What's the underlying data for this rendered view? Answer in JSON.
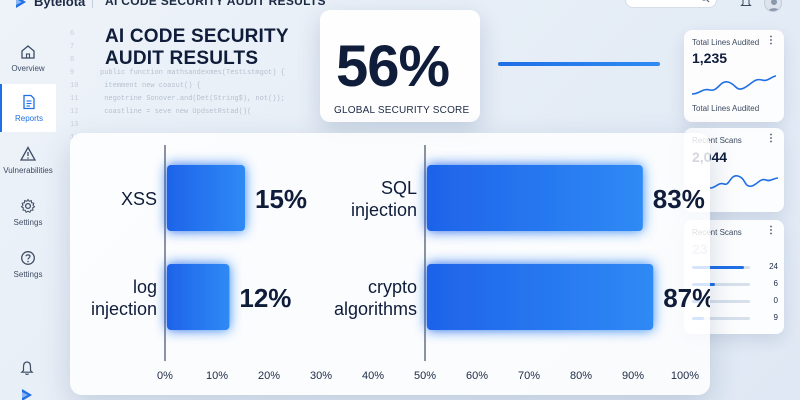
{
  "app": {
    "brand": "Bytelota",
    "title": "AI CODE SECURITY AUDIT RESULTS"
  },
  "sidebar": {
    "items": [
      {
        "label": "Overview",
        "icon": "home-icon",
        "active": false
      },
      {
        "label": "Reports",
        "icon": "document-icon",
        "active": true
      },
      {
        "label": "Vulnerabilities",
        "icon": "warning-icon",
        "active": false
      },
      {
        "label": "Settings",
        "icon": "gear-icon",
        "active": false
      },
      {
        "label": "Settings",
        "icon": "help-icon",
        "active": false
      }
    ]
  },
  "heading": {
    "line1": "AI CODE SECURITY",
    "line2": "AUDIT RESULTS"
  },
  "score": {
    "value": "56%",
    "label": "GLOBAL SECURITY SCORE"
  },
  "cards": {
    "lines_audited": {
      "title": "Total Lines Audited",
      "value": "1,235",
      "footer": "Total Lines Audited"
    },
    "recent_scans_1": {
      "title": "Recent Scans",
      "value": "2,044"
    },
    "recent_scans_2": {
      "title": "Recent Scans",
      "value": "23",
      "rows": [
        {
          "value": 24,
          "fill": 0.9
        },
        {
          "value": 6,
          "fill": 0.4
        },
        {
          "value": 0,
          "fill": 0.15
        },
        {
          "value": 9,
          "fill": 0.2
        }
      ]
    }
  },
  "code_lines": [
    {
      "n": "6",
      "text": ""
    },
    {
      "n": "7",
      "text": ""
    },
    {
      "n": "8",
      "text": ""
    },
    {
      "n": "9",
      "text": "public function mathsandexmes(TestLstmgot) {"
    },
    {
      "n": "10",
      "text": "   itemment new coasut() {"
    },
    {
      "n": "11",
      "text": "      negotrine Sonover.and(Det(String$), not());"
    },
    {
      "n": "12",
      "text": "      coastline = seve new UpdsetRstad()("
    },
    {
      "n": "13",
      "text": ""
    },
    {
      "n": "14",
      "text": ""
    }
  ],
  "colors": {
    "accent": "#1f6fe5",
    "bar_start": "#1e63e9",
    "bar_end": "#2f8af5",
    "text_dark": "#0f1c3a"
  },
  "chart_data": {
    "type": "bar",
    "orientation": "horizontal",
    "xlim": [
      0,
      100
    ],
    "xticks": [
      "0%",
      "10%",
      "20%",
      "30%",
      "40%",
      "50%",
      "60%",
      "70%",
      "80%",
      "90%",
      "100%"
    ],
    "bars": [
      {
        "category": "XSS",
        "value": 15,
        "label": "15%"
      },
      {
        "category": "log injection",
        "value": 12,
        "label": "12%"
      },
      {
        "category": "SQL injection",
        "value": 83,
        "label": "83%"
      },
      {
        "category": "crypto algorithms",
        "value": 87,
        "label": "87%"
      }
    ],
    "category_lines": [
      [
        "XSS"
      ],
      [
        "log",
        "injection"
      ],
      [
        "SQL",
        "injection"
      ],
      [
        "crypto",
        "algorithms"
      ]
    ]
  }
}
